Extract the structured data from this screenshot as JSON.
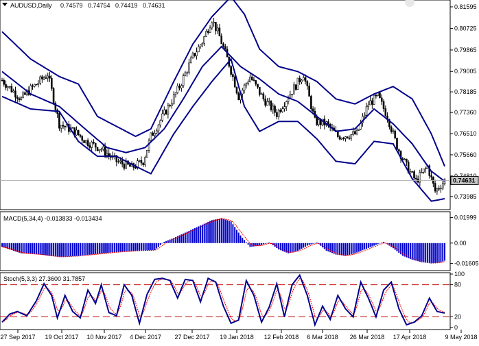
{
  "chart_data": {
    "type": "candlestick",
    "header": {
      "symbol": "AUDUSD,Daily",
      "open": "0.74579",
      "high": "0.74754",
      "low": "0.74419",
      "close": "0.74631"
    },
    "price_axis": {
      "ticks": [
        "0.81595",
        "0.80725",
        "0.79865",
        "0.79005",
        "0.78185",
        "0.77360",
        "0.76510",
        "0.75660",
        "0.74810",
        "0.73985"
      ],
      "ylim": [
        0.7357,
        0.8176
      ]
    },
    "current_price_label": "0.74631",
    "date_axis": {
      "labels": [
        "27 Sep 2017",
        "19 Oct 2017",
        "10 Nov 2017",
        "4 Dec 2017",
        "27 Dec 2017",
        "19 Jan 2018",
        "12 Feb 2018",
        "6 Mar 2018",
        "26 Mar 2018",
        "17 Apr 2018",
        "9 May 2018"
      ]
    },
    "close_path": {
      "x_day": [
        0,
        10,
        15,
        24,
        30,
        38,
        44,
        52,
        60,
        68,
        74,
        78,
        85,
        88,
        93,
        100,
        105,
        110,
        114,
        119,
        124,
        130,
        137,
        144,
        150,
        158,
        164,
        170,
        176,
        186,
        192,
        197,
        202,
        207,
        212,
        217,
        223,
        227,
        232
      ],
      "price": [
        0.7865,
        0.779,
        0.783,
        0.789,
        0.769,
        0.766,
        0.762,
        0.759,
        0.754,
        0.7515,
        0.754,
        0.764,
        0.773,
        0.777,
        0.784,
        0.796,
        0.802,
        0.811,
        0.804,
        0.793,
        0.78,
        0.788,
        0.779,
        0.773,
        0.78,
        0.789,
        0.77,
        0.769,
        0.764,
        0.765,
        0.777,
        0.78,
        0.772,
        0.76,
        0.752,
        0.746,
        0.752,
        0.742,
        0.7463
      ]
    },
    "bollinger_bands": {
      "name": "",
      "middle": {
        "x_day": [
          0,
          15,
          30,
          45,
          55,
          65,
          75,
          85,
          95,
          105,
          115,
          125,
          135,
          145,
          155,
          165,
          175,
          185,
          195,
          205,
          215,
          225,
          232
        ],
        "price": [
          0.79,
          0.781,
          0.776,
          0.766,
          0.7595,
          0.7575,
          0.7595,
          0.767,
          0.779,
          0.792,
          0.8,
          0.792,
          0.787,
          0.781,
          0.778,
          0.772,
          0.766,
          0.767,
          0.775,
          0.769,
          0.761,
          0.75,
          0.746
        ]
      },
      "upper": {
        "x_day": [
          0,
          15,
          30,
          40,
          50,
          60,
          70,
          78,
          90,
          100,
          110,
          120,
          127,
          135,
          145,
          155,
          165,
          175,
          185,
          195,
          205,
          215,
          225,
          232
        ],
        "price": [
          0.806,
          0.795,
          0.788,
          0.785,
          0.772,
          0.768,
          0.764,
          0.767,
          0.786,
          0.801,
          0.812,
          0.82,
          0.813,
          0.799,
          0.792,
          0.79,
          0.786,
          0.779,
          0.777,
          0.781,
          0.784,
          0.779,
          0.765,
          0.752
        ]
      },
      "lower": {
        "x_day": [
          0,
          15,
          30,
          40,
          50,
          60,
          70,
          78,
          90,
          100,
          110,
          120,
          127,
          135,
          145,
          155,
          165,
          175,
          185,
          195,
          205,
          215,
          225,
          232
        ],
        "price": [
          0.78,
          0.775,
          0.774,
          0.762,
          0.756,
          0.756,
          0.752,
          0.749,
          0.765,
          0.776,
          0.786,
          0.795,
          0.776,
          0.766,
          0.77,
          0.77,
          0.763,
          0.754,
          0.753,
          0.762,
          0.761,
          0.747,
          0.738,
          0.739
        ]
      }
    },
    "macd": {
      "label": "MACD(5,34,4) -0.013833 -0.013434",
      "ticks": [
        "0.01999",
        "0.00",
        "-0.01605"
      ],
      "ylim": [
        -0.02,
        0.023
      ],
      "histogram_path": {
        "x_day": [
          0,
          10,
          20,
          30,
          40,
          50,
          60,
          70,
          80,
          85,
          90,
          100,
          110,
          115,
          120,
          125,
          130,
          135,
          140,
          145,
          150,
          155,
          160,
          165,
          170,
          175,
          180,
          185,
          190,
          195,
          200,
          205,
          210,
          215,
          220,
          225,
          230,
          232
        ],
        "value": [
          -0.003,
          -0.008,
          -0.009,
          -0.011,
          -0.01,
          -0.0085,
          -0.007,
          -0.006,
          -0.0055,
          0.001,
          0.004,
          0.011,
          0.018,
          0.0195,
          0.017,
          0.006,
          -0.003,
          -0.002,
          0.0005,
          -0.005,
          -0.008,
          -0.006,
          -0.002,
          0.0005,
          -0.006,
          -0.009,
          -0.01,
          -0.008,
          -0.005,
          -0.002,
          0.001,
          -0.004,
          -0.01,
          -0.013,
          -0.015,
          -0.016,
          -0.015,
          -0.0138
        ]
      }
    },
    "stochastic": {
      "label": "Stoch(5,3,3) 27.3600 31.7857",
      "ticks": [
        "100",
        "80",
        "20",
        "0"
      ],
      "ylim": [
        0,
        100
      ],
      "levels": [
        80,
        20
      ],
      "main_path": {
        "x_day": [
          0,
          4,
          8,
          13,
          18,
          22,
          26,
          29,
          33,
          37,
          41,
          45,
          49,
          52,
          56,
          60,
          64,
          68,
          72,
          76,
          80,
          84,
          88,
          92,
          96,
          100,
          104,
          108,
          112,
          116,
          120,
          124,
          128,
          132,
          136,
          140,
          144,
          148,
          152,
          156,
          160,
          164,
          168,
          172,
          176,
          180,
          184,
          188,
          192,
          196,
          200,
          204,
          208,
          212,
          216,
          220,
          224,
          228,
          232
        ],
        "value": [
          10,
          25,
          30,
          22,
          50,
          82,
          60,
          18,
          60,
          30,
          18,
          70,
          45,
          80,
          28,
          22,
          80,
          60,
          8,
          62,
          90,
          92,
          88,
          55,
          90,
          88,
          48,
          92,
          85,
          40,
          8,
          14,
          88,
          60,
          10,
          38,
          82,
          20,
          80,
          98,
          60,
          5,
          40,
          15,
          60,
          35,
          20,
          85,
          55,
          20,
          70,
          85,
          35,
          5,
          10,
          22,
          55,
          30,
          27
        ]
      }
    }
  }
}
